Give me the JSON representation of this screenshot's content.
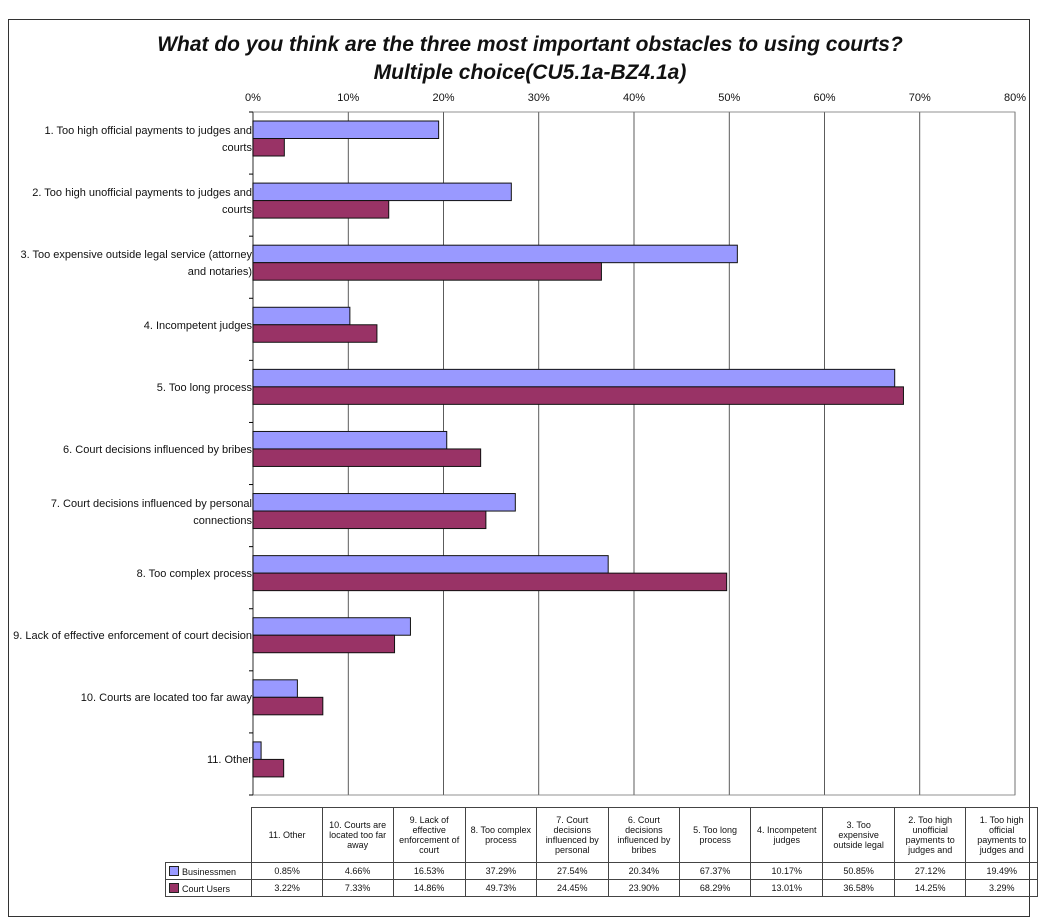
{
  "chart_data": {
    "type": "bar",
    "orientation": "horizontal",
    "title": "What do you think are the three most important obstacles to using courts? Multiple choice(CU5.1a-BZ4.1a)",
    "xlabel": "",
    "ylabel": "",
    "xlim": [
      0,
      80
    ],
    "x_ticks": [
      "0%",
      "10%",
      "20%",
      "30%",
      "40%",
      "50%",
      "60%",
      "70%",
      "80%"
    ],
    "grid": true,
    "legend_position": "data-table-bottom",
    "categories": [
      "1. Too high official payments to judges and courts",
      "2. Too high unofficial payments to judges and courts",
      "3. Too expensive outside legal service (attorney and notaries)",
      "4. Incompetent judges",
      "5. Too long process",
      "6. Court decisions influenced by bribes",
      "7. Court decisions influenced by personal connections",
      "8. Too complex process",
      "9. Lack of effective enforcement of court decision",
      "10. Courts are located too far away",
      "11. Other"
    ],
    "series": [
      {
        "name": "Businessmen",
        "color": "#9999ff",
        "values": [
          19.49,
          27.12,
          50.85,
          10.17,
          67.37,
          20.34,
          27.54,
          37.29,
          16.53,
          4.66,
          0.85
        ]
      },
      {
        "name": "Court Users",
        "color": "#993366",
        "values": [
          3.29,
          14.25,
          36.58,
          13.01,
          68.29,
          23.9,
          24.45,
          49.73,
          14.86,
          7.33,
          3.22
        ]
      }
    ],
    "table": {
      "headers": [
        "11. Other",
        "10. Courts are located too far away",
        "9. Lack of effective enforcement of court",
        "8. Too complex process",
        "7. Court decisions influenced by personal",
        "6. Court decisions influenced by bribes",
        "5. Too long process",
        "4. Incompetent judges",
        "3. Too expensive outside legal",
        "2. Too high unofficial payments to judges and",
        "1. Too high official payments to judges and"
      ],
      "rows": [
        {
          "name": "Businessmen",
          "cells": [
            "0.85%",
            "4.66%",
            "16.53%",
            "37.29%",
            "27.54%",
            "20.34%",
            "67.37%",
            "10.17%",
            "50.85%",
            "27.12%",
            "19.49%"
          ]
        },
        {
          "name": "Court Users",
          "cells": [
            "3.22%",
            "7.33%",
            "14.86%",
            "49.73%",
            "24.45%",
            "23.90%",
            "68.29%",
            "13.01%",
            "36.58%",
            "14.25%",
            "3.29%"
          ]
        }
      ]
    }
  }
}
